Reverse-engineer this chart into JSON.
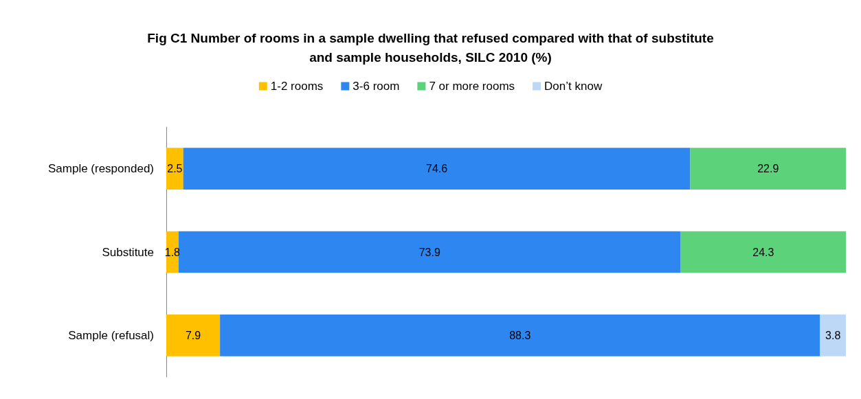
{
  "chart_data": {
    "type": "bar",
    "orientation": "horizontal",
    "stacked": true,
    "title": "Fig C1 Number of rooms in a sample dwelling that refused compared with that of substitute\nand sample households, SILC 2010 (%)",
    "categories": [
      "Sample (responded)",
      "Substitute",
      "Sample (refusal)"
    ],
    "series": [
      {
        "name": "1-2 rooms",
        "color": "#ffc000",
        "values": [
          2.5,
          1.8,
          7.9
        ]
      },
      {
        "name": "3-6 room",
        "color": "#2e86f0",
        "values": [
          74.6,
          73.9,
          88.3
        ]
      },
      {
        "name": "7 or more rooms",
        "color": "#5cd27a",
        "values": [
          22.9,
          24.3,
          null
        ]
      },
      {
        "name": "Don’t know",
        "color": "#bdd7f7",
        "values": [
          null,
          null,
          3.8
        ]
      }
    ],
    "xlim": [
      0,
      100
    ],
    "tick_labels": "y",
    "data_labels": true,
    "legend": "top",
    "grid": false
  }
}
